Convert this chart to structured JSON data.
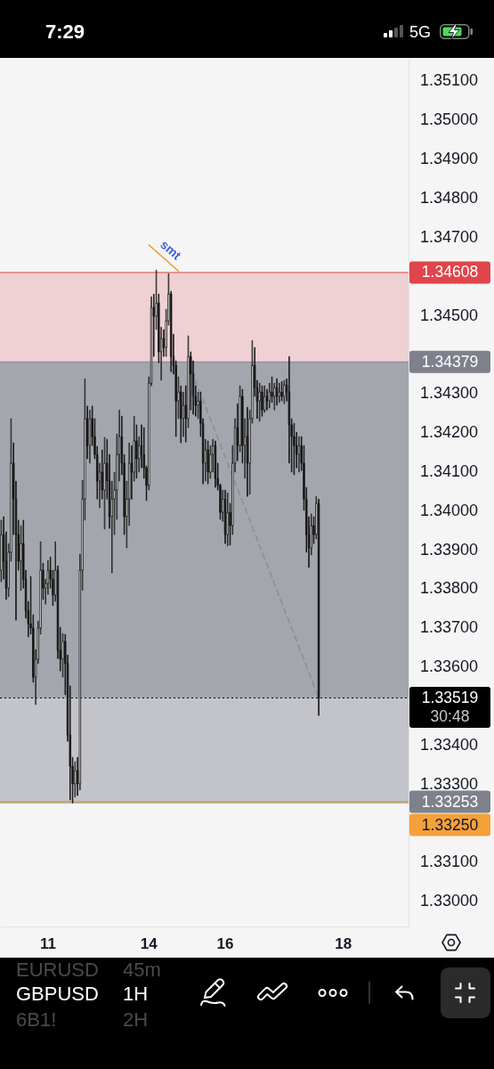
{
  "chart_data": {
    "type": "candlestick",
    "title": "GBPUSD",
    "subtitle": "1H",
    "color": "#111111",
    "categories": [
      null,
      null,
      null,
      null,
      null,
      null,
      null,
      null,
      null,
      null,
      null,
      null,
      null,
      null,
      null,
      null,
      null,
      null,
      null,
      "11",
      null,
      null,
      null,
      null,
      null,
      null,
      null,
      null,
      null,
      null,
      null,
      null,
      null,
      null,
      null,
      null,
      null,
      null,
      null,
      null,
      null,
      null,
      null,
      null,
      null,
      null,
      null,
      null,
      null,
      null,
      null,
      null,
      null,
      null,
      null,
      null,
      null,
      null,
      null,
      null,
      "14",
      null,
      null,
      null,
      null,
      null,
      null,
      null,
      null,
      null,
      null,
      null,
      null,
      null,
      null,
      null,
      null,
      null,
      null,
      null,
      null,
      null,
      null,
      null,
      null,
      null,
      null,
      null,
      null,
      null,
      null,
      "16",
      null,
      null,
      null,
      null,
      null,
      null,
      null,
      null,
      null,
      null,
      null,
      null,
      null,
      null,
      null,
      null,
      null,
      null,
      null,
      null,
      null,
      null,
      null,
      null,
      null,
      null,
      null,
      null,
      null,
      null,
      null,
      null,
      null,
      null,
      null,
      null,
      null,
      null,
      null,
      null,
      null,
      null,
      null,
      null,
      null,
      null,
      null,
      "18",
      null,
      null,
      null,
      null,
      null,
      null,
      null,
      null,
      null,
      null,
      null,
      null,
      null,
      null,
      null,
      null,
      null,
      null,
      null,
      null,
      null,
      null,
      null,
      null,
      null,
      null
    ],
    "ohlc": [
      [
        1.33846,
        1.33974,
        1.33816,
        1.33937
      ],
      [
        1.33937,
        1.33983,
        1.33823,
        1.33869
      ],
      [
        1.33869,
        1.33944,
        1.33771,
        1.338
      ],
      [
        1.338,
        1.33914,
        1.33778,
        1.33892
      ],
      [
        1.33892,
        1.34234,
        1.33869,
        1.3412
      ],
      [
        1.3412,
        1.34172,
        1.33937,
        1.34028
      ],
      [
        1.34028,
        1.34074,
        1.33718,
        1.33937
      ],
      [
        1.33937,
        1.33974,
        1.33846,
        1.33869
      ],
      [
        1.33869,
        1.3396,
        1.33794,
        1.33914
      ],
      [
        1.33914,
        1.33974,
        1.338,
        1.33823
      ],
      [
        1.33823,
        1.33846,
        1.33723,
        1.33743
      ],
      [
        1.33743,
        1.33766,
        1.33675,
        1.33709
      ],
      [
        1.33709,
        1.3383,
        1.33682,
        1.33698
      ],
      [
        1.33698,
        1.33732,
        1.33559,
        1.33572
      ],
      [
        1.33572,
        1.33643,
        1.33502,
        1.33618
      ],
      [
        1.33618,
        1.33716,
        1.33607,
        1.33698
      ],
      [
        1.33698,
        1.33919,
        1.33682,
        1.33846
      ],
      [
        1.33846,
        1.33864,
        1.33771,
        1.338
      ],
      [
        1.338,
        1.33823,
        1.33759,
        1.33812
      ],
      [
        1.33812,
        1.33871,
        1.33784,
        1.33846
      ],
      [
        1.33846,
        1.3388,
        1.338,
        1.33823
      ],
      [
        1.33823,
        1.33846,
        1.33755,
        1.33782
      ],
      [
        1.33782,
        1.33919,
        1.33766,
        1.33846
      ],
      [
        1.33846,
        1.33857,
        1.3362,
        1.33641
      ],
      [
        1.33641,
        1.337,
        1.33588,
        1.33618
      ],
      [
        1.33618,
        1.33684,
        1.33572,
        1.33664
      ],
      [
        1.33664,
        1.33682,
        1.33527,
        1.33607
      ],
      [
        1.33607,
        1.33629,
        1.33408,
        1.33424
      ],
      [
        1.33424,
        1.3355,
        1.33258,
        1.33344
      ],
      [
        1.33344,
        1.33367,
        1.3325,
        1.33299
      ],
      [
        1.33299,
        1.33356,
        1.33265,
        1.33333
      ],
      [
        1.33333,
        1.33367,
        1.33269,
        1.33299
      ],
      [
        1.33299,
        1.33887,
        1.33283,
        1.33846
      ],
      [
        1.33846,
        1.34076,
        1.33794,
        1.34028
      ],
      [
        1.34028,
        1.34336,
        1.33974,
        1.34234
      ],
      [
        1.34234,
        1.34266,
        1.34131,
        1.34165
      ],
      [
        1.34165,
        1.34256,
        1.3412,
        1.34234
      ],
      [
        1.34234,
        1.34266,
        1.34165,
        1.34188
      ],
      [
        1.34188,
        1.34234,
        1.34131,
        1.34142
      ],
      [
        1.34142,
        1.34163,
        1.34028,
        1.34074
      ],
      [
        1.34074,
        1.3412,
        1.34006,
        1.34097
      ],
      [
        1.34097,
        1.34154,
        1.34028,
        1.34051
      ],
      [
        1.34051,
        1.34186,
        1.33951,
        1.3412
      ],
      [
        1.3412,
        1.34181,
        1.34028,
        1.34074
      ],
      [
        1.34074,
        1.34142,
        1.33953,
        1.33983
      ],
      [
        1.33983,
        1.34074,
        1.33839,
        1.34028
      ],
      [
        1.34028,
        1.34097,
        1.33937,
        1.34051
      ],
      [
        1.34051,
        1.34195,
        1.33976,
        1.34142
      ],
      [
        1.34142,
        1.34256,
        1.34074,
        1.34188
      ],
      [
        1.34188,
        1.3424,
        1.3409,
        1.3412
      ],
      [
        1.3412,
        1.34142,
        1.33937,
        1.33983
      ],
      [
        1.33983,
        1.34074,
        1.33903,
        1.34028
      ],
      [
        1.34028,
        1.34172,
        1.3396,
        1.3412
      ],
      [
        1.3412,
        1.34165,
        1.34028,
        1.34097
      ],
      [
        1.34097,
        1.3424,
        1.34074,
        1.34177
      ],
      [
        1.34177,
        1.34218,
        1.34081,
        1.34131
      ],
      [
        1.34131,
        1.34188,
        1.34097,
        1.34165
      ],
      [
        1.34165,
        1.34218,
        1.34108,
        1.34142
      ],
      [
        1.34142,
        1.34211,
        1.34081,
        1.34108
      ],
      [
        1.34108,
        1.34113,
        1.34024,
        1.34063
      ],
      [
        1.34063,
        1.34341,
        1.34051,
        1.34325
      ],
      [
        1.34325,
        1.34546,
        1.34318,
        1.34519
      ],
      [
        1.34519,
        1.34553,
        1.34393,
        1.34496
      ],
      [
        1.34496,
        1.34614,
        1.34462,
        1.3453
      ],
      [
        1.3453,
        1.34553,
        1.34377,
        1.34405
      ],
      [
        1.34405,
        1.34468,
        1.34332,
        1.34439
      ],
      [
        1.34439,
        1.34462,
        1.34393,
        1.34416
      ],
      [
        1.34416,
        1.34514,
        1.34393,
        1.34484
      ],
      [
        1.34484,
        1.34605,
        1.34473,
        1.34553
      ],
      [
        1.34553,
        1.3456,
        1.34354,
        1.34393
      ],
      [
        1.34393,
        1.3445,
        1.34348,
        1.3437
      ],
      [
        1.3437,
        1.34382,
        1.34188,
        1.34279
      ],
      [
        1.34279,
        1.34341,
        1.34234,
        1.34302
      ],
      [
        1.34302,
        1.34318,
        1.34172,
        1.34234
      ],
      [
        1.34234,
        1.34302,
        1.34188,
        1.34268
      ],
      [
        1.34268,
        1.34318,
        1.34174,
        1.34234
      ],
      [
        1.34234,
        1.34446,
        1.34211,
        1.34393
      ],
      [
        1.34393,
        1.34405,
        1.34256,
        1.34348
      ],
      [
        1.34348,
        1.34382,
        1.34245,
        1.34291
      ],
      [
        1.34291,
        1.34318,
        1.3424,
        1.34268
      ],
      [
        1.34268,
        1.34302,
        1.34234,
        1.34279
      ],
      [
        1.34279,
        1.34302,
        1.34188,
        1.34222
      ],
      [
        1.34222,
        1.34234,
        1.34067,
        1.3412
      ],
      [
        1.3412,
        1.34181,
        1.34074,
        1.34154
      ],
      [
        1.34154,
        1.34177,
        1.34067,
        1.34097
      ],
      [
        1.34097,
        1.34165,
        1.34081,
        1.34142
      ],
      [
        1.34142,
        1.34181,
        1.34097,
        1.34165
      ],
      [
        1.34165,
        1.34177,
        1.34058,
        1.34081
      ],
      [
        1.34081,
        1.3412,
        1.34051,
        1.34063
      ],
      [
        1.34063,
        1.34067,
        1.33976,
        1.33994
      ],
      [
        1.33994,
        1.34051,
        1.33971,
        1.34028
      ],
      [
        1.34028,
        1.34051,
        1.33914,
        1.33937
      ],
      [
        1.33937,
        1.34044,
        1.33908,
        1.33994
      ],
      [
        1.33994,
        1.34017,
        1.3391,
        1.3396
      ],
      [
        1.3396,
        1.34165,
        1.33937,
        1.3412
      ],
      [
        1.3412,
        1.34234,
        1.34097,
        1.34211
      ],
      [
        1.34211,
        1.34272,
        1.34126,
        1.34165
      ],
      [
        1.34165,
        1.34318,
        1.34149,
        1.34291
      ],
      [
        1.34291,
        1.34309,
        1.3412,
        1.34165
      ],
      [
        1.34165,
        1.34234,
        1.34081,
        1.34188
      ],
      [
        1.34188,
        1.34263,
        1.34035,
        1.3412
      ],
      [
        1.3412,
        1.34256,
        1.3404,
        1.34234
      ],
      [
        1.34234,
        1.34434,
        1.34222,
        1.3437
      ],
      [
        1.3437,
        1.34416,
        1.34291,
        1.34313
      ],
      [
        1.34313,
        1.34332,
        1.34234,
        1.34279
      ],
      [
        1.34279,
        1.34325,
        1.34227,
        1.34302
      ],
      [
        1.34302,
        1.34318,
        1.3424,
        1.34256
      ],
      [
        1.34256,
        1.34318,
        1.3425,
        1.34291
      ],
      [
        1.34291,
        1.34309,
        1.34256,
        1.34279
      ],
      [
        1.34279,
        1.34325,
        1.34261,
        1.34302
      ],
      [
        1.34302,
        1.34341,
        1.34275,
        1.34291
      ],
      [
        1.34291,
        1.34325,
        1.34256,
        1.34313
      ],
      [
        1.34313,
        1.34336,
        1.34268,
        1.34291
      ],
      [
        1.34291,
        1.34325,
        1.34275,
        1.34302
      ],
      [
        1.34302,
        1.34329,
        1.34279,
        1.34291
      ],
      [
        1.34291,
        1.34332,
        1.34272,
        1.3432
      ],
      [
        1.3432,
        1.34336,
        1.34279,
        1.34302
      ],
      [
        1.34302,
        1.34393,
        1.3412,
        1.34218
      ],
      [
        1.34218,
        1.34234,
        1.34097,
        1.34188
      ],
      [
        1.34188,
        1.34222,
        1.3409,
        1.34165
      ],
      [
        1.34165,
        1.34199,
        1.34108,
        1.34142
      ],
      [
        1.34142,
        1.34188,
        1.34097,
        1.34165
      ],
      [
        1.34165,
        1.34188,
        1.34101,
        1.3412
      ],
      [
        1.3412,
        1.34165,
        1.33999,
        1.34028
      ],
      [
        1.34028,
        1.34058,
        1.33892,
        1.33937
      ],
      [
        1.33937,
        1.33983,
        1.33853,
        1.33903
      ],
      [
        1.33903,
        1.3399,
        1.33885,
        1.3396
      ],
      [
        1.3396,
        1.33983,
        1.33914,
        1.33937
      ],
      [
        1.33937,
        1.34035,
        1.33926,
        1.34017
      ],
      [
        1.34017,
        1.34028,
        1.33474,
        1.33519
      ],
      null,
      null,
      null,
      null,
      null,
      null,
      null,
      null,
      null,
      null,
      null,
      null,
      null,
      null,
      null,
      null,
      null,
      null,
      null,
      null,
      null,
      null,
      null,
      null,
      null,
      null,
      null,
      null,
      null,
      null,
      null,
      null,
      null,
      null,
      null,
      null
    ],
    "series": [
      {
        "type": "line",
        "color": "#8c8f96",
        "line_style": "dashed",
        "values": [
          null,
          null,
          null,
          null,
          null,
          null,
          null,
          null,
          null,
          null,
          null,
          null,
          null,
          null,
          null,
          null,
          null,
          null,
          null,
          null,
          null,
          null,
          null,
          null,
          null,
          null,
          null,
          null,
          null,
          null,
          null,
          null,
          null,
          null,
          null,
          null,
          null,
          null,
          null,
          null,
          null,
          null,
          null,
          null,
          null,
          null,
          null,
          null,
          null,
          null,
          null,
          null,
          null,
          null,
          null,
          null,
          null,
          null,
          null,
          null,
          null,
          null,
          null,
          null,
          null,
          null,
          null,
          null,
          null,
          null,
          null,
          null,
          null,
          null,
          null,
          null,
          1.34379,
          1.34363,
          1.34347,
          1.3433,
          1.34314,
          1.34298,
          1.34282,
          1.34265,
          1.34249,
          1.34233,
          1.34217,
          1.34201,
          1.34184,
          1.34168,
          1.34152,
          1.34136,
          1.34119,
          1.34103,
          1.34087,
          1.34071,
          1.34055,
          1.34038,
          1.34022,
          1.34006,
          1.3399,
          1.33973,
          1.33957,
          1.33941,
          1.33925,
          1.33909,
          1.33892,
          1.33876,
          1.3386,
          1.33844,
          1.33828,
          1.33811,
          1.33795,
          1.33779,
          1.33763,
          1.33746,
          1.3373,
          1.33714,
          1.33698,
          1.33682,
          1.33665,
          1.33649,
          1.33633,
          1.33617,
          1.33601,
          1.33584,
          1.33568,
          1.33552,
          1.33536,
          1.33519,
          null,
          null,
          null,
          null,
          null,
          null,
          null,
          null,
          null,
          null,
          null,
          null,
          null,
          null,
          null,
          null,
          null,
          null,
          null,
          null,
          null,
          null,
          null,
          null,
          null,
          null,
          null,
          null,
          null,
          null,
          null,
          null,
          null,
          null,
          null,
          null
        ]
      },
      {
        "type": "line",
        "name": "smt",
        "color": "#f0a03c",
        "line_style": "solid",
        "values": [
          null,
          null,
          null,
          null,
          null,
          null,
          null,
          null,
          null,
          null,
          null,
          null,
          null,
          null,
          null,
          null,
          null,
          null,
          null,
          null,
          null,
          null,
          null,
          null,
          null,
          null,
          null,
          null,
          null,
          null,
          null,
          null,
          null,
          null,
          null,
          null,
          null,
          null,
          null,
          null,
          null,
          null,
          null,
          null,
          null,
          null,
          null,
          null,
          null,
          null,
          null,
          null,
          null,
          null,
          null,
          null,
          null,
          null,
          null,
          null,
          1.34678,
          1.34673,
          1.34667,
          1.34662,
          1.34656,
          1.34651,
          1.34645,
          1.3464,
          1.34634,
          1.34628,
          1.34623,
          1.34617,
          1.34612,
          null,
          null,
          null,
          null,
          null,
          null,
          null,
          null,
          null,
          null,
          null,
          null,
          null,
          null,
          null,
          null,
          null,
          null,
          null,
          null,
          null,
          null,
          null,
          null,
          null,
          null,
          null,
          null,
          null,
          null,
          null,
          null,
          null,
          null,
          null,
          null,
          null,
          null,
          null,
          null,
          null,
          null,
          null,
          null,
          null,
          null,
          null,
          null,
          null,
          null,
          null,
          null,
          null,
          null,
          null,
          null,
          null,
          null,
          null,
          null,
          null,
          null,
          null,
          null,
          null,
          null,
          null,
          null,
          null,
          null,
          null,
          null,
          null,
          null,
          null,
          null,
          null,
          null,
          null,
          null,
          null,
          null,
          null,
          null,
          null,
          null,
          null,
          null,
          null,
          null,
          null,
          null,
          null
        ]
      }
    ],
    "ylim": [
      1.32934,
      1.35155
    ],
    "yticks": [
      {
        "value": 1.351,
        "label": "1.35100"
      },
      {
        "value": 1.35,
        "label": "1.35000"
      },
      {
        "value": 1.349,
        "label": "1.34900"
      },
      {
        "value": 1.348,
        "label": "1.34800"
      },
      {
        "value": 1.347,
        "label": "1.34700"
      },
      {
        "value": 1.345,
        "label": "1.34500"
      },
      {
        "value": 1.343,
        "label": "1.34300"
      },
      {
        "value": 1.342,
        "label": "1.34200"
      },
      {
        "value": 1.341,
        "label": "1.34100"
      },
      {
        "value": 1.34,
        "label": "1.34000"
      },
      {
        "value": 1.339,
        "label": "1.33900"
      },
      {
        "value": 1.338,
        "label": "1.33800"
      },
      {
        "value": 1.337,
        "label": "1.33700"
      },
      {
        "value": 1.336,
        "label": "1.33600"
      },
      {
        "value": 1.334,
        "label": "1.33400"
      },
      {
        "value": 1.333,
        "label": "1.33300"
      },
      {
        "value": 1.331,
        "label": "1.33100"
      },
      {
        "value": 1.33,
        "label": "1.33000"
      }
    ],
    "bands": [
      {
        "axis": "y",
        "from": 1.33253,
        "to": 1.34379,
        "color": "#c2c4c9"
      },
      {
        "axis": "y",
        "from": 1.33519,
        "to": 1.34379,
        "color": "#a3a6ad"
      },
      {
        "axis": "y",
        "from": 1.34379,
        "to": 1.34608,
        "color": "#efd0d3"
      }
    ],
    "ref_lines": [
      {
        "axis": "y",
        "value": 1.34608,
        "label": "1.34608",
        "color": "#e0454b"
      },
      {
        "axis": "y",
        "value": 1.34379,
        "label": "1.34379",
        "color": "#7e818b"
      },
      {
        "axis": "y",
        "value": 1.33519,
        "label": "1.33519\n30:48",
        "color": "#000000",
        "line_style": "dotted"
      },
      {
        "axis": "y",
        "value": 1.33253,
        "label": "1.33253",
        "color": "#7e818b"
      },
      {
        "axis": "y",
        "value": 1.3325,
        "label": "1.33250",
        "color": "#f5a03a"
      }
    ],
    "annotations": [
      "7:29",
      "5G",
      "EURUSD",
      "45m",
      "6B1!",
      "2H"
    ]
  }
}
